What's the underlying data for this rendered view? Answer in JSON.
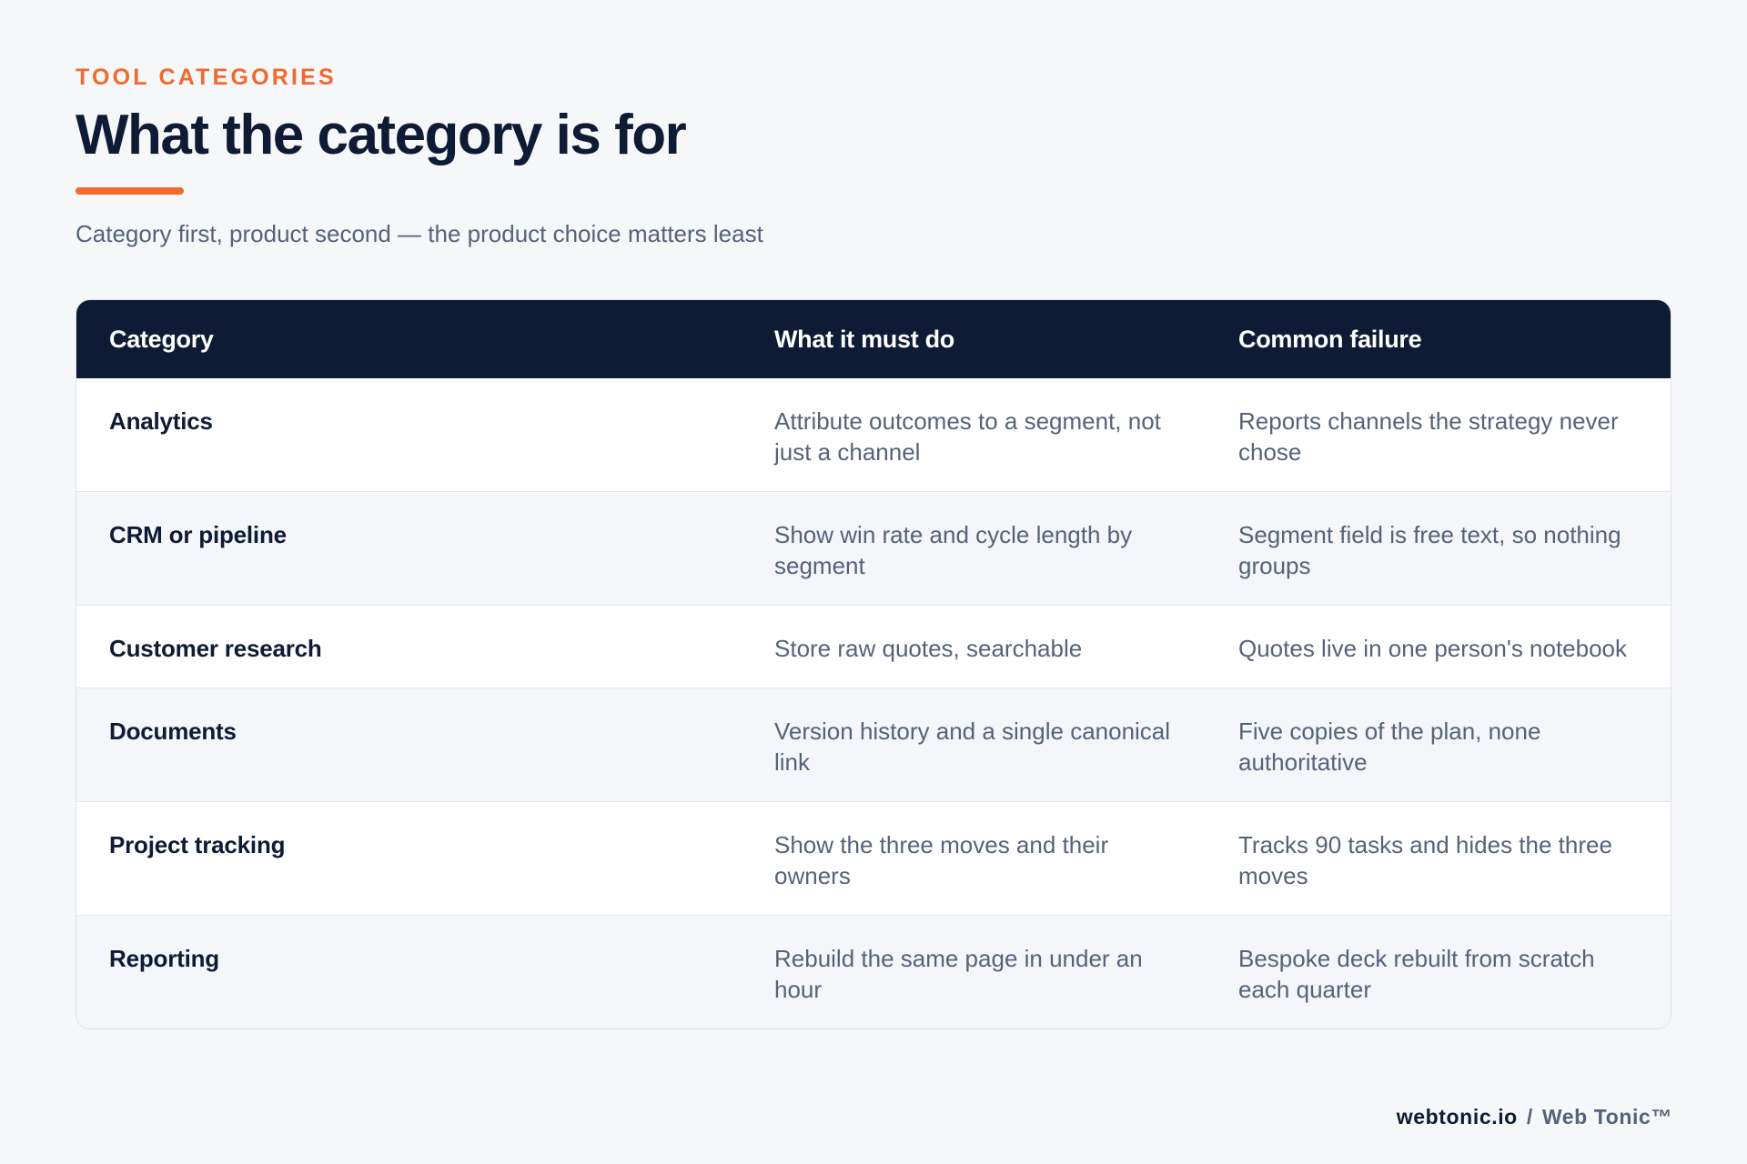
{
  "header": {
    "eyebrow": "TOOL CATEGORIES",
    "title": "What the category is for",
    "subtitle": "Category first, product second — the product choice matters least"
  },
  "table": {
    "columns": [
      "Category",
      "What it must do",
      "Common failure"
    ],
    "rows": [
      {
        "category": "Analytics",
        "must_do": "Attribute outcomes to a segment, not just a channel",
        "failure": "Reports channels the strategy never chose"
      },
      {
        "category": "CRM or pipeline",
        "must_do": "Show win rate and cycle length by segment",
        "failure": "Segment field is free text, so nothing groups"
      },
      {
        "category": "Customer research",
        "must_do": "Store raw quotes, searchable",
        "failure": "Quotes live in one person's notebook"
      },
      {
        "category": "Documents",
        "must_do": "Version history and a single canonical link",
        "failure": "Five copies of the plan, none authoritative"
      },
      {
        "category": "Project tracking",
        "must_do": "Show the three moves and their owners",
        "failure": "Tracks 90 tasks and hides the three moves"
      },
      {
        "category": "Reporting",
        "must_do": "Rebuild the same page in under an hour",
        "failure": "Bespoke deck rebuilt from scratch each quarter"
      }
    ]
  },
  "footer": {
    "domain": "webtonic.io",
    "separator": "/",
    "brand": "Web Tonic™"
  },
  "colors": {
    "accent": "#f2692e",
    "navy": "#0d1b35",
    "muted_text": "#56627a",
    "background": "#f6f7f9"
  }
}
